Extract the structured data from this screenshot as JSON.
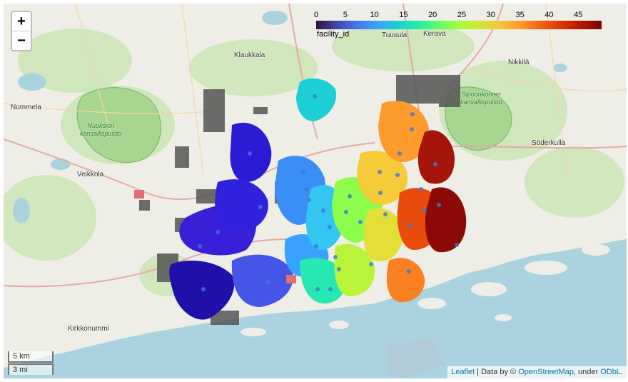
{
  "map": {
    "zoom_in": "+",
    "zoom_out": "−",
    "places": [
      {
        "name": "Klaukkala"
      },
      {
        "name": "Tuusula"
      },
      {
        "name": "Kerava"
      },
      {
        "name": "Nikkilä"
      },
      {
        "name": "Nummela"
      },
      {
        "name": "Söderkulla"
      },
      {
        "name": "Veikkola"
      },
      {
        "name": "Kirkkonummi"
      }
    ],
    "parks": [
      {
        "name": "Nuuksion\nkansallispuisto"
      },
      {
        "name": "Sipoonkorven\nkansallispuisto"
      }
    ],
    "legend": {
      "caption": "facility_id",
      "ticks": [
        "0",
        "5",
        "10",
        "15",
        "20",
        "25",
        "30",
        "35",
        "40",
        "45"
      ],
      "min": 0,
      "max": 48,
      "colormap": "turbo"
    },
    "scale": {
      "km": "5 km",
      "mi": "3 mi"
    },
    "attribution": {
      "leaflet": "Leaflet",
      "data_by": " | Data by © ",
      "osm": "OpenStreetMap",
      "under": ", under ",
      "odbl": "ODbL",
      "end": "."
    }
  }
}
